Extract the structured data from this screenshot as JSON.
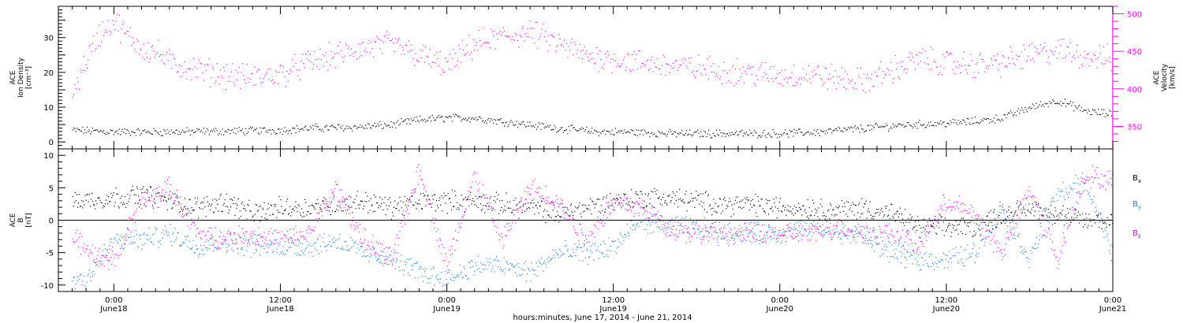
{
  "colors": {
    "black": "#000000",
    "magenta": "#ff00ff",
    "blue": "#1a80e0"
  },
  "chart_data": [
    {
      "type": "scatter",
      "panel": "plasma",
      "y_label_lines": [
        "ACE",
        "Ion Density",
        "[cm⁻³]"
      ],
      "y2_label_lines": [
        "ACE",
        "Velocity",
        "[km/s]"
      ],
      "ylim": [
        -2,
        39
      ],
      "y2lim": [
        320,
        510
      ],
      "yticks": [
        "0",
        "10",
        "20",
        "30"
      ],
      "y2ticks": [
        "350",
        "400",
        "450",
        "500"
      ],
      "series": [
        {
          "name": "Ion Density",
          "color": "#000000",
          "axis": "left",
          "x_hours": [
            -3,
            0,
            4,
            8,
            12,
            14,
            18,
            20,
            22,
            24,
            26,
            30,
            32,
            35,
            37,
            40,
            44,
            48,
            51,
            54,
            57,
            60,
            62,
            64,
            66,
            68,
            70,
            72
          ],
          "values": [
            3.5,
            3,
            3,
            3.2,
            3.5,
            4,
            4.5,
            5,
            6.5,
            7,
            7,
            5,
            4,
            3,
            3,
            2.5,
            2.5,
            2.5,
            3,
            4,
            5,
            5.5,
            6,
            7,
            10,
            12,
            9,
            8
          ]
        },
        {
          "name": "Velocity",
          "color": "#ff00ff",
          "axis": "right",
          "x_hours": [
            -3,
            -2,
            -1,
            0,
            1,
            2,
            3,
            4,
            6,
            8,
            10,
            12,
            14,
            16,
            18,
            20,
            22,
            24,
            26,
            28,
            30,
            32,
            34,
            36,
            38,
            40,
            42,
            44,
            46,
            48,
            50,
            52,
            54,
            56,
            58,
            60,
            62,
            64,
            66,
            68,
            70,
            72
          ],
          "values": [
            395,
            440,
            475,
            490,
            470,
            455,
            450,
            435,
            425,
            420,
            415,
            420,
            435,
            445,
            455,
            460,
            445,
            430,
            460,
            470,
            475,
            460,
            445,
            440,
            435,
            432,
            428,
            425,
            422,
            418,
            420,
            415,
            410,
            425,
            440,
            435,
            432,
            435,
            445,
            452,
            445,
            440
          ]
        }
      ]
    },
    {
      "type": "scatter",
      "panel": "imf",
      "y_label_lines": [
        "ACE",
        "B",
        "[nT]"
      ],
      "ylim": [
        -11,
        11
      ],
      "yticks": [
        "10",
        "5",
        "0",
        "-5",
        "-10"
      ],
      "zero_line": true,
      "series": [
        {
          "name": "Bx",
          "color": "#000000",
          "x_hours": [
            -3,
            0,
            2,
            4,
            6,
            8,
            10,
            12,
            14,
            16,
            18,
            20,
            22,
            24,
            26,
            28,
            30,
            32,
            34,
            36,
            38,
            40,
            42,
            44,
            46,
            48,
            50,
            52,
            54,
            56,
            58,
            60,
            62,
            64,
            66,
            68,
            70,
            72
          ],
          "values": [
            3,
            3.5,
            4,
            3,
            2,
            3,
            1,
            2,
            2,
            2.5,
            3,
            2,
            3,
            3,
            3,
            2.5,
            2,
            1,
            2,
            3,
            3.5,
            3.5,
            3,
            2.5,
            2.5,
            2,
            2,
            1.5,
            2,
            1,
            -1,
            -1,
            -1,
            1,
            2,
            1,
            0,
            0
          ]
        },
        {
          "name": "By",
          "color": "#1a80e0",
          "x_hours": [
            -3,
            -2,
            -1,
            0,
            2,
            4,
            6,
            8,
            10,
            12,
            14,
            16,
            18,
            20,
            22,
            24,
            26,
            28,
            30,
            32,
            34,
            36,
            38,
            40,
            42,
            44,
            46,
            48,
            50,
            52,
            54,
            56,
            58,
            60,
            62,
            64,
            66,
            68,
            70,
            72
          ],
          "values": [
            -9,
            -9,
            -6,
            -3,
            -3,
            -2,
            -4,
            -3,
            -4,
            -4,
            -4,
            -3,
            -5,
            -6,
            -8,
            -9,
            -7,
            -7,
            -8,
            -5,
            -5,
            -4,
            0,
            -1,
            -1,
            -2,
            -2,
            -2,
            -1,
            -2,
            -2,
            -5,
            -6,
            -6,
            -5,
            2,
            -6,
            4,
            6,
            -5
          ]
        },
        {
          "name": "Bz",
          "color": "#ff00ff",
          "x_hours": [
            -3,
            -2,
            -1,
            0,
            2,
            4,
            6,
            8,
            10,
            12,
            14,
            16,
            18,
            20,
            22,
            24,
            26,
            28,
            30,
            32,
            34,
            36,
            38,
            40,
            42,
            44,
            46,
            48,
            50,
            52,
            54,
            56,
            58,
            60,
            62,
            64,
            66,
            68,
            70,
            72
          ],
          "values": [
            -3,
            -4,
            -6,
            -6,
            3,
            5,
            -2,
            -3,
            -2,
            -3,
            -2,
            5,
            -3,
            -6,
            8,
            -7,
            7,
            -3,
            5,
            3,
            -3,
            3,
            2,
            -1,
            -2,
            -2,
            -2,
            -2,
            -2,
            -1,
            -2,
            -2,
            -4,
            3,
            1,
            -5,
            5,
            -6,
            7,
            6
          ]
        }
      ],
      "legend_entries": [
        {
          "text": "B",
          "sub": "x",
          "color": "#000000"
        },
        {
          "text": "B",
          "sub": "y",
          "color": "#1a80e0"
        },
        {
          "text": "B",
          "sub": "z",
          "color": "#ff00ff"
        }
      ]
    }
  ],
  "x_axis": {
    "start_hour": -4,
    "end_hour": 72,
    "major_ticks": [
      {
        "hour": 0,
        "time": "0:00",
        "date": "June18"
      },
      {
        "hour": 12,
        "time": "12:00",
        "date": "June18"
      },
      {
        "hour": 24,
        "time": "0:00",
        "date": "June19"
      },
      {
        "hour": 36,
        "time": "12:00",
        "date": "June19"
      },
      {
        "hour": 48,
        "time": "0:00",
        "date": "June20"
      },
      {
        "hour": 60,
        "time": "12:00",
        "date": "June20"
      },
      {
        "hour": 72,
        "time": "0:00",
        "date": "June21"
      }
    ],
    "label": "hours:minutes, June 17, 2014 - June 21, 2014"
  }
}
